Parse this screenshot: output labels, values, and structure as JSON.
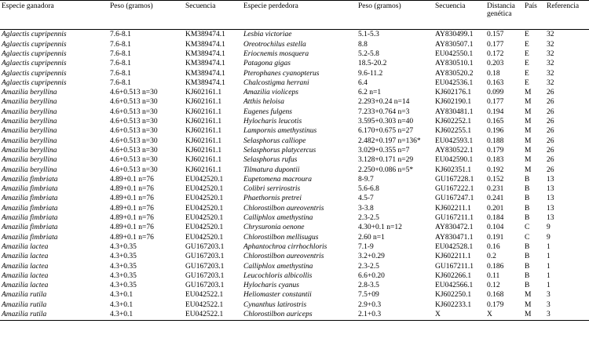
{
  "table": {
    "headers": {
      "winner_species": "Especie ganadora",
      "winner_weight": "Peso (gramos)",
      "winner_sequence": "Secuencia",
      "loser_species": "Especie perdedora",
      "loser_weight": "Peso (gramos)",
      "loser_sequence": "Secuencia",
      "genetic_distance": "Distancia genética",
      "country": "País",
      "reference": "Referencia"
    },
    "rows": [
      [
        "Aglaectis cupripennis",
        "7.6-8.1",
        "KM389474.1",
        "Lesbia victoriae",
        "5.1-5.3",
        "AY830499.1",
        "0.157",
        "E",
        "32"
      ],
      [
        "Aglaectis cupripennis",
        "7.6-8.1",
        "KM389474.1",
        "Oreotrochilus estella",
        "8.8",
        "AY830507.1",
        "0.177",
        "E",
        "32"
      ],
      [
        "Aglaectis cupripennis",
        "7.6-8.1",
        "KM389474.1",
        "Eriocnemis mosquera",
        "5.2-5.8",
        "EU042550.1",
        "0.172",
        "E",
        "32"
      ],
      [
        "Aglaectis cupripennis",
        "7.6-8.1",
        "KM389474.1",
        "Patagona gigas",
        "18.5-20.2",
        "AY830510.1",
        "0.203",
        "E",
        "32"
      ],
      [
        "Aglaectis cupripennis",
        "7.6-8.1",
        "KM389474.1",
        "Pterophanes cyanopterus",
        "9.6-11.2",
        "AY830520.2",
        "0.18",
        "E",
        "32"
      ],
      [
        "Aglaectis cupripennis",
        "7.6-8.1",
        "KM389474.1",
        "Chalcostigma herrani",
        "6.4",
        "EU042536.1",
        "0.163",
        "E",
        "32"
      ],
      [
        "Amazilia beryllina",
        "4.6+0.513 n=30",
        "KJ602161.1",
        "Amazilia violiceps",
        "6.2 n=1",
        "KJ602176.1",
        "0.099",
        "M",
        "26"
      ],
      [
        "Amazilia beryllina",
        "4.6+0.513 n=30",
        "KJ602161.1",
        "Atthis heloisa",
        "2.293+0.24 n=14",
        "KJ602190.1",
        "0.177",
        "M",
        "26"
      ],
      [
        "Amazilia beryllina",
        "4.6+0.513 n=30",
        "KJ602161.1",
        "Eugenes fulgens",
        "7.233+0.764 n=3",
        "AY830481.1",
        "0.194",
        "M",
        "26"
      ],
      [
        "Amazilia beryllina",
        "4.6+0.513 n=30",
        "KJ602161.1",
        "Hylocharis leucotis",
        "3.595+0.303 n=40",
        "KJ602252.1",
        "0.165",
        "M",
        "26"
      ],
      [
        "Amazilia beryllina",
        "4.6+0.513 n=30",
        "KJ602161.1",
        "Lampornis amethystinus",
        "6.170+0.675 n=27",
        "KJ602255.1",
        "0.196",
        "M",
        "26"
      ],
      [
        "Amazilia beryllina",
        "4.6+0.513 n=30",
        "KJ602161.1",
        "Selasphorus calliope",
        "2.482+0.197 n=136*",
        "EU042593.1",
        "0.188",
        "M",
        "26"
      ],
      [
        "Amazilia beryllina",
        "4.6+0.513 n=30",
        "KJ602161.1",
        "Selasphorus platycercus",
        "3.029+0.355 n=7",
        "AY830522.1",
        "0.179",
        "M",
        "26"
      ],
      [
        "Amazilia beryllina",
        "4.6+0.513 n=30",
        "KJ602161.1",
        "Selasphorus rufus",
        "3.128+0.171 n=29",
        "EU042590.1",
        "0.183",
        "M",
        "26"
      ],
      [
        "Amazilia beryllina",
        "4.6+0.513 n=30",
        "KJ602161.1",
        "Tilmatura dupontii",
        "2.250+0.086 n=5*",
        "KJ602351.1",
        "0.192",
        "M",
        "26"
      ],
      [
        "Amazilia fimbriata",
        "4.89+0.1 n=76",
        "EU042520.1",
        "Eupetomena macroura",
        "8-9.7",
        "GU167228.1",
        "0.152",
        "B",
        "13"
      ],
      [
        "Amazilia fimbriata",
        "4.89+0.1 n=76",
        "EU042520.1",
        "Colibri serrirostris",
        "5.6-6.8",
        "GU167222.1",
        "0.231",
        "B",
        "13"
      ],
      [
        "Amazilia fimbriata",
        "4.89+0.1 n=76",
        "EU042520.1",
        "Phaethornis pretrei",
        "4.5-7",
        "GU167247.1",
        "0.241",
        "B",
        "13"
      ],
      [
        "Amazilia fimbriata",
        "4.89+0.1 n=76",
        "EU042520.1",
        "Chlorostilbon aureoventris",
        "3-3.8",
        "KJ602211.1",
        "0.201",
        "B",
        "13"
      ],
      [
        "Amazilia fimbriata",
        "4.89+0.1 n=76",
        "EU042520.1",
        "Calliphlox amethystina",
        "2.3-2.5",
        "GU167211.1",
        "0.184",
        "B",
        "13"
      ],
      [
        "Amazilia fimbriata",
        "4.89+0.1 n=76",
        "EU042520.1",
        "Chrysuronia oenone",
        "4.30+0.1 n=12",
        "AY830472.1",
        "0.104",
        "C",
        "9"
      ],
      [
        "Amazilia fimbriata",
        "4.89+0.1 n=76",
        "EU042520.1",
        "Chlorostilbon mellisugus",
        "2.60 n=1",
        "AY830471.1",
        "0.191",
        "C",
        "9"
      ],
      [
        "Amazilia lactea",
        "4.3+0.35",
        "GU167203.1",
        "Aphantochroa cirrhochloris",
        "7.1-9",
        "EU042528.1",
        "0.16",
        "B",
        "1"
      ],
      [
        "Amazilia lactea",
        "4.3+0.35",
        "GU167203.1",
        "Chlorostilbon aureoventris",
        "3.2+0.29",
        "KJ602211.1",
        "0.2",
        "B",
        "1"
      ],
      [
        "Amazilia lactea",
        "4.3+0.35",
        "GU167203.1",
        "Calliphlox amethystina",
        "2.3-2.5",
        "GU167211.1",
        "0.186",
        "B",
        "1"
      ],
      [
        "Amazilia lactea",
        "4.3+0.35",
        "GU167203.1",
        "Leucochloris albicollis",
        "6.6+0.20",
        "KJ602266.1",
        "0.11",
        "B",
        "1"
      ],
      [
        "Amazilia lactea",
        "4.3+0.35",
        "GU167203.1",
        "Hylocharis cyanus",
        "2.8-3.5",
        "EU042566.1",
        "0.12",
        "B",
        "1"
      ],
      [
        "Amazilia rutila",
        "4.3+0.1",
        "EU042522.1",
        "Heliomaster constantii",
        "7.5+09",
        "KJ602250.1",
        "0.168",
        "M",
        "3"
      ],
      [
        "Amazilia rutila",
        "4.3+0.1",
        "EU042522.1",
        "Cynanthus latirostris",
        "2.9+0.3",
        "KJ602233.1",
        "0.179",
        "M",
        "3"
      ],
      [
        "Amazilia rutila",
        "4.3+0.1",
        "EU042522.1",
        "Chlorostilbon auriceps",
        "2.1+0.3",
        "X",
        "X",
        "M",
        "3"
      ]
    ]
  }
}
